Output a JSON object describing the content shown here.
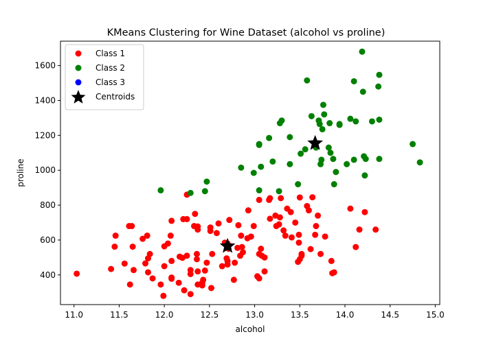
{
  "chart_data": {
    "type": "scatter",
    "title": "KMeans Clustering for Wine Dataset (alcohol vs proline)",
    "xlabel": "alcohol",
    "ylabel": "proline",
    "xlim": [
      10.85,
      15.05
    ],
    "ylim": [
      230,
      1740
    ],
    "xticks": [
      11.0,
      11.5,
      12.0,
      12.5,
      13.0,
      13.5,
      14.0,
      14.5,
      15.0
    ],
    "xtick_labels": [
      "11.0",
      "11.5",
      "12.0",
      "12.5",
      "13.0",
      "13.5",
      "14.0",
      "14.5",
      "15.0"
    ],
    "yticks": [
      400,
      600,
      800,
      1000,
      1200,
      1400,
      1600
    ],
    "ytick_labels": [
      "400",
      "600",
      "800",
      "1000",
      "1200",
      "1400",
      "1600"
    ],
    "grid": false,
    "legend_position": "top-left",
    "series": [
      {
        "name": "Class 1",
        "color": "#ff0000",
        "marker": "circle",
        "points": [
          [
            11.03,
            407
          ],
          [
            11.41,
            434
          ],
          [
            11.45,
            562
          ],
          [
            11.46,
            625
          ],
          [
            11.56,
            465
          ],
          [
            11.61,
            680
          ],
          [
            11.62,
            345
          ],
          [
            11.64,
            680
          ],
          [
            11.65,
            562
          ],
          [
            11.66,
            428
          ],
          [
            11.76,
            607
          ],
          [
            11.79,
            466
          ],
          [
            11.81,
            625
          ],
          [
            11.82,
            415
          ],
          [
            11.82,
            495
          ],
          [
            11.84,
            520
          ],
          [
            11.87,
            380
          ],
          [
            11.96,
            345
          ],
          [
            11.99,
            280
          ],
          [
            12.0,
            450
          ],
          [
            12.0,
            564
          ],
          [
            12.04,
            580
          ],
          [
            12.07,
            625
          ],
          [
            12.08,
            378
          ],
          [
            12.08,
            385
          ],
          [
            12.08,
            480
          ],
          [
            12.08,
            710
          ],
          [
            12.16,
            355
          ],
          [
            12.17,
            505
          ],
          [
            12.2,
            498
          ],
          [
            12.21,
            720
          ],
          [
            12.22,
            312
          ],
          [
            12.25,
            510
          ],
          [
            12.25,
            720
          ],
          [
            12.25,
            860
          ],
          [
            12.29,
            290
          ],
          [
            12.29,
            405
          ],
          [
            12.29,
            428
          ],
          [
            12.33,
            680
          ],
          [
            12.34,
            750
          ],
          [
            12.36,
            520
          ],
          [
            12.36,
            490
          ],
          [
            12.37,
            345
          ],
          [
            12.37,
            420
          ],
          [
            12.37,
            660
          ],
          [
            12.37,
            678
          ],
          [
            12.42,
            340
          ],
          [
            12.42,
            355
          ],
          [
            12.43,
            372
          ],
          [
            12.45,
            425
          ],
          [
            12.47,
            470
          ],
          [
            12.51,
            652
          ],
          [
            12.51,
            672
          ],
          [
            12.52,
            325
          ],
          [
            12.53,
            520
          ],
          [
            12.58,
            640
          ],
          [
            12.6,
            695
          ],
          [
            12.64,
            450
          ],
          [
            12.67,
            585
          ],
          [
            12.69,
            495
          ],
          [
            12.7,
            460
          ],
          [
            12.7,
            480
          ],
          [
            12.7,
            580
          ],
          [
            12.71,
            550
          ],
          [
            12.72,
            715
          ],
          [
            12.77,
            372
          ],
          [
            12.78,
            470
          ],
          [
            12.81,
            555
          ],
          [
            12.82,
            685
          ],
          [
            12.84,
            510
          ],
          [
            12.85,
            625
          ],
          [
            12.86,
            560
          ],
          [
            12.87,
            530
          ],
          [
            12.92,
            610
          ],
          [
            12.93,
            770
          ],
          [
            12.96,
            620
          ],
          [
            12.99,
            680
          ],
          [
            13.03,
            392
          ],
          [
            13.05,
            380
          ],
          [
            13.05,
            520
          ],
          [
            13.05,
            830
          ],
          [
            13.07,
            550
          ],
          [
            13.08,
            510
          ],
          [
            13.11,
            420
          ],
          [
            13.11,
            500
          ],
          [
            13.16,
            830
          ],
          [
            13.17,
            840
          ],
          [
            13.17,
            722
          ],
          [
            13.23,
            740
          ],
          [
            13.24,
            680
          ],
          [
            13.27,
            690
          ],
          [
            13.28,
            730
          ],
          [
            13.29,
            840
          ],
          [
            13.32,
            655
          ],
          [
            13.34,
            625
          ],
          [
            13.36,
            780
          ],
          [
            13.4,
            760
          ],
          [
            13.41,
            615
          ],
          [
            13.45,
            700
          ],
          [
            13.48,
            475
          ],
          [
            13.49,
            585
          ],
          [
            13.49,
            630
          ],
          [
            13.5,
            490
          ],
          [
            13.5,
            844
          ],
          [
            13.52,
            510
          ],
          [
            13.52,
            520
          ],
          [
            13.58,
            795
          ],
          [
            13.6,
            770
          ],
          [
            13.62,
            548
          ],
          [
            13.64,
            845
          ],
          [
            13.67,
            630
          ],
          [
            13.68,
            680
          ],
          [
            13.7,
            740
          ],
          [
            13.73,
            520
          ],
          [
            13.78,
            620
          ],
          [
            13.85,
            480
          ],
          [
            13.86,
            410
          ],
          [
            13.88,
            415
          ],
          [
            14.06,
            780
          ],
          [
            14.12,
            560
          ],
          [
            14.16,
            660
          ],
          [
            14.22,
            760
          ],
          [
            14.34,
            660
          ]
        ]
      },
      {
        "name": "Class 2",
        "color": "#008000",
        "marker": "circle",
        "points": [
          [
            11.96,
            885
          ],
          [
            12.29,
            870
          ],
          [
            12.45,
            880
          ],
          [
            12.47,
            935
          ],
          [
            12.85,
            1015
          ],
          [
            12.99,
            985
          ],
          [
            13.05,
            885
          ],
          [
            13.05,
            1145
          ],
          [
            13.05,
            1150
          ],
          [
            13.07,
            1020
          ],
          [
            13.16,
            1185
          ],
          [
            13.2,
            1050
          ],
          [
            13.27,
            880
          ],
          [
            13.28,
            1270
          ],
          [
            13.3,
            1285
          ],
          [
            13.39,
            1035
          ],
          [
            13.39,
            1190
          ],
          [
            13.48,
            920
          ],
          [
            13.51,
            1095
          ],
          [
            13.56,
            1120
          ],
          [
            13.58,
            1515
          ],
          [
            13.63,
            1310
          ],
          [
            13.68,
            1130
          ],
          [
            13.71,
            1285
          ],
          [
            13.72,
            1265
          ],
          [
            13.73,
            1035
          ],
          [
            13.74,
            1060
          ],
          [
            13.75,
            1235
          ],
          [
            13.76,
            1375
          ],
          [
            13.77,
            1320
          ],
          [
            13.82,
            1130
          ],
          [
            13.83,
            1270
          ],
          [
            13.84,
            1100
          ],
          [
            13.87,
            1065
          ],
          [
            13.88,
            920
          ],
          [
            13.9,
            990
          ],
          [
            13.94,
            1260
          ],
          [
            13.94,
            1265
          ],
          [
            14.02,
            1035
          ],
          [
            14.06,
            1295
          ],
          [
            14.1,
            1060
          ],
          [
            14.1,
            1510
          ],
          [
            14.12,
            1280
          ],
          [
            14.19,
            1680
          ],
          [
            14.2,
            1450
          ],
          [
            14.21,
            1080
          ],
          [
            14.22,
            970
          ],
          [
            14.23,
            1065
          ],
          [
            14.3,
            1280
          ],
          [
            14.37,
            1480
          ],
          [
            14.38,
            1065
          ],
          [
            14.38,
            1290
          ],
          [
            14.38,
            1547
          ],
          [
            14.75,
            1150
          ],
          [
            14.83,
            1045
          ]
        ]
      },
      {
        "name": "Class 3",
        "color": "#0000ff",
        "marker": "circle",
        "points": []
      }
    ],
    "centroids": {
      "name": "Centroids",
      "color": "#000000",
      "marker": "star",
      "points": [
        [
          12.7,
          565
        ],
        [
          13.67,
          1155
        ]
      ]
    }
  }
}
